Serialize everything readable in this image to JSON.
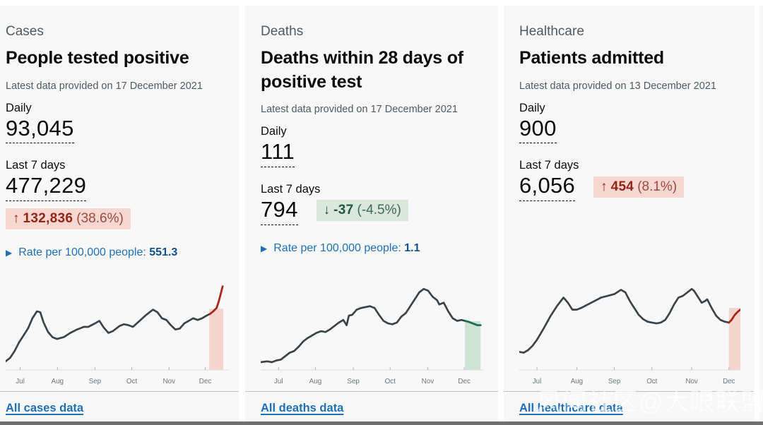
{
  "watermark": "风闻社区@大眼联盟",
  "cards": [
    {
      "section": "Cases",
      "title": "People tested positive",
      "meta": "Latest data provided on 17 December 2021",
      "daily_label": "Daily",
      "daily_value": "93,045",
      "weekly_label": "Last 7 days",
      "weekly_value": "477,229",
      "change": {
        "arrow": "↑",
        "value": "132,836",
        "percent": "(38.6%)",
        "tone": "bad"
      },
      "rate_label": "Rate per 100,000 people:",
      "rate_value": "551.3",
      "link": "All cases data"
    },
    {
      "section": "Deaths",
      "title": "Deaths within 28 days of positive test",
      "meta": "Latest data provided on 17 December 2021",
      "daily_label": "Daily",
      "daily_value": "111",
      "weekly_label": "Last 7 days",
      "weekly_value": "794",
      "change": {
        "arrow": "↓",
        "value": "-37",
        "percent": "(-4.5%)",
        "tone": "good"
      },
      "rate_label": "Rate per 100,000 people:",
      "rate_value": "1.1",
      "link": "All deaths data"
    },
    {
      "section": "Healthcare",
      "title": "Patients admitted",
      "meta": "Latest data provided on 13 December 2021",
      "daily_label": "Daily",
      "daily_value": "900",
      "weekly_label": "Last 7 days",
      "weekly_value": "6,056",
      "change": {
        "arrow": "↑",
        "value": "454",
        "percent": "(8.1%)",
        "tone": "bad"
      },
      "link": "All healthcare data"
    }
  ],
  "chart_data": [
    {
      "type": "line",
      "name": "cases-six-month-trend",
      "x_ticks": [
        "Jul",
        "Aug",
        "Sep",
        "Oct",
        "Nov",
        "Dec"
      ],
      "tick_t": [
        0.065,
        0.232,
        0.4,
        0.565,
        0.732,
        0.894
      ],
      "y_axis": "none shown; values normalized 0-1 of plot height",
      "line_color": "#3b4248",
      "highlight_color": "#a92316",
      "band_color": "#f4d4cf",
      "band": [
        0.912,
        0.975,
        0.71
      ],
      "series": [
        [
          0.0,
          0.1
        ],
        [
          0.02,
          0.14
        ],
        [
          0.04,
          0.22
        ],
        [
          0.06,
          0.32
        ],
        [
          0.08,
          0.4
        ],
        [
          0.1,
          0.48
        ],
        [
          0.12,
          0.6
        ],
        [
          0.14,
          0.68
        ],
        [
          0.155,
          0.67
        ],
        [
          0.17,
          0.55
        ],
        [
          0.19,
          0.44
        ],
        [
          0.21,
          0.38
        ],
        [
          0.23,
          0.36
        ],
        [
          0.26,
          0.38
        ],
        [
          0.29,
          0.43
        ],
        [
          0.32,
          0.47
        ],
        [
          0.35,
          0.5
        ],
        [
          0.37,
          0.5
        ],
        [
          0.4,
          0.54
        ],
        [
          0.42,
          0.57
        ],
        [
          0.44,
          0.49
        ],
        [
          0.46,
          0.43
        ],
        [
          0.48,
          0.45
        ],
        [
          0.51,
          0.51
        ],
        [
          0.53,
          0.53
        ],
        [
          0.55,
          0.52
        ],
        [
          0.57,
          0.5
        ],
        [
          0.6,
          0.57
        ],
        [
          0.63,
          0.64
        ],
        [
          0.66,
          0.7
        ],
        [
          0.68,
          0.67
        ],
        [
          0.7,
          0.6
        ],
        [
          0.72,
          0.58
        ],
        [
          0.74,
          0.52
        ],
        [
          0.76,
          0.47
        ],
        [
          0.78,
          0.48
        ],
        [
          0.8,
          0.54
        ],
        [
          0.82,
          0.57
        ],
        [
          0.84,
          0.6
        ],
        [
          0.86,
          0.58
        ],
        [
          0.88,
          0.6
        ],
        [
          0.9,
          0.63
        ],
        [
          0.915,
          0.65
        ]
      ],
      "highlight": [
        [
          0.915,
          0.65
        ],
        [
          0.93,
          0.68
        ],
        [
          0.945,
          0.72
        ],
        [
          0.955,
          0.8
        ],
        [
          0.965,
          0.9
        ],
        [
          0.972,
          0.97
        ]
      ]
    },
    {
      "type": "line",
      "name": "deaths-six-month-trend",
      "x_ticks": [
        "Jul",
        "Aug",
        "Sep",
        "Oct",
        "Nov",
        "Dec"
      ],
      "tick_t": [
        0.08,
        0.245,
        0.415,
        0.58,
        0.748,
        0.912
      ],
      "y_axis": "none shown; values normalized 0-1 of plot height",
      "line_color": "#3b4248",
      "highlight_color": "#1e7050",
      "band_color": "#cfe2d6",
      "band": [
        0.915,
        0.985,
        0.565
      ],
      "series": [
        [
          0.0,
          0.09
        ],
        [
          0.03,
          0.1
        ],
        [
          0.05,
          0.09
        ],
        [
          0.07,
          0.11
        ],
        [
          0.09,
          0.12
        ],
        [
          0.11,
          0.16
        ],
        [
          0.13,
          0.2
        ],
        [
          0.15,
          0.22
        ],
        [
          0.17,
          0.27
        ],
        [
          0.19,
          0.33
        ],
        [
          0.21,
          0.37
        ],
        [
          0.23,
          0.4
        ],
        [
          0.25,
          0.43
        ],
        [
          0.27,
          0.45
        ],
        [
          0.29,
          0.44
        ],
        [
          0.31,
          0.47
        ],
        [
          0.33,
          0.51
        ],
        [
          0.35,
          0.55
        ],
        [
          0.37,
          0.58
        ],
        [
          0.385,
          0.52
        ],
        [
          0.395,
          0.63
        ],
        [
          0.41,
          0.64
        ],
        [
          0.43,
          0.7
        ],
        [
          0.45,
          0.72
        ],
        [
          0.47,
          0.73
        ],
        [
          0.49,
          0.74
        ],
        [
          0.51,
          0.72
        ],
        [
          0.53,
          0.64
        ],
        [
          0.55,
          0.57
        ],
        [
          0.57,
          0.54
        ],
        [
          0.59,
          0.53
        ],
        [
          0.61,
          0.55
        ],
        [
          0.63,
          0.62
        ],
        [
          0.65,
          0.66
        ],
        [
          0.67,
          0.74
        ],
        [
          0.69,
          0.82
        ],
        [
          0.71,
          0.9
        ],
        [
          0.73,
          0.94
        ],
        [
          0.75,
          0.92
        ],
        [
          0.77,
          0.85
        ],
        [
          0.79,
          0.81
        ],
        [
          0.8,
          0.76
        ],
        [
          0.82,
          0.78
        ],
        [
          0.84,
          0.68
        ],
        [
          0.86,
          0.6
        ],
        [
          0.88,
          0.57
        ],
        [
          0.9,
          0.58
        ],
        [
          0.915,
          0.57
        ]
      ],
      "highlight": [
        [
          0.915,
          0.57
        ],
        [
          0.93,
          0.56
        ],
        [
          0.95,
          0.54
        ],
        [
          0.97,
          0.52
        ],
        [
          0.985,
          0.52
        ]
      ]
    },
    {
      "type": "line",
      "name": "healthcare-six-month-trend",
      "x_ticks": [
        "Jul",
        "Aug",
        "Sep",
        "Oct",
        "Nov",
        "Dec"
      ],
      "tick_t": [
        0.08,
        0.26,
        0.43,
        0.6,
        0.78,
        0.948
      ],
      "y_axis": "none shown; values normalized 0-1 of plot height",
      "line_color": "#3b4248",
      "highlight_color": "#a92316",
      "band_color": "#f4d4cf",
      "band": [
        0.948,
        1.0,
        0.72
      ],
      "series": [
        [
          0.0,
          0.21
        ],
        [
          0.02,
          0.2
        ],
        [
          0.04,
          0.23
        ],
        [
          0.06,
          0.28
        ],
        [
          0.08,
          0.35
        ],
        [
          0.11,
          0.48
        ],
        [
          0.14,
          0.62
        ],
        [
          0.17,
          0.74
        ],
        [
          0.2,
          0.84
        ],
        [
          0.22,
          0.78
        ],
        [
          0.24,
          0.7
        ],
        [
          0.26,
          0.7
        ],
        [
          0.28,
          0.72
        ],
        [
          0.31,
          0.76
        ],
        [
          0.34,
          0.8
        ],
        [
          0.37,
          0.84
        ],
        [
          0.4,
          0.86
        ],
        [
          0.43,
          0.88
        ],
        [
          0.46,
          0.93
        ],
        [
          0.48,
          0.9
        ],
        [
          0.5,
          0.8
        ],
        [
          0.52,
          0.72
        ],
        [
          0.54,
          0.64
        ],
        [
          0.56,
          0.59
        ],
        [
          0.58,
          0.56
        ],
        [
          0.6,
          0.55
        ],
        [
          0.62,
          0.54
        ],
        [
          0.64,
          0.55
        ],
        [
          0.66,
          0.58
        ],
        [
          0.68,
          0.66
        ],
        [
          0.7,
          0.76
        ],
        [
          0.72,
          0.84
        ],
        [
          0.74,
          0.86
        ],
        [
          0.76,
          0.9
        ],
        [
          0.78,
          0.94
        ],
        [
          0.79,
          0.92
        ],
        [
          0.81,
          0.84
        ],
        [
          0.825,
          0.78
        ],
        [
          0.84,
          0.8
        ],
        [
          0.85,
          0.82
        ],
        [
          0.87,
          0.72
        ],
        [
          0.89,
          0.63
        ],
        [
          0.91,
          0.58
        ],
        [
          0.93,
          0.56
        ],
        [
          0.948,
          0.55
        ]
      ],
      "highlight": [
        [
          0.948,
          0.55
        ],
        [
          0.96,
          0.58
        ],
        [
          0.975,
          0.64
        ],
        [
          0.99,
          0.68
        ],
        [
          1.0,
          0.7
        ]
      ]
    }
  ]
}
